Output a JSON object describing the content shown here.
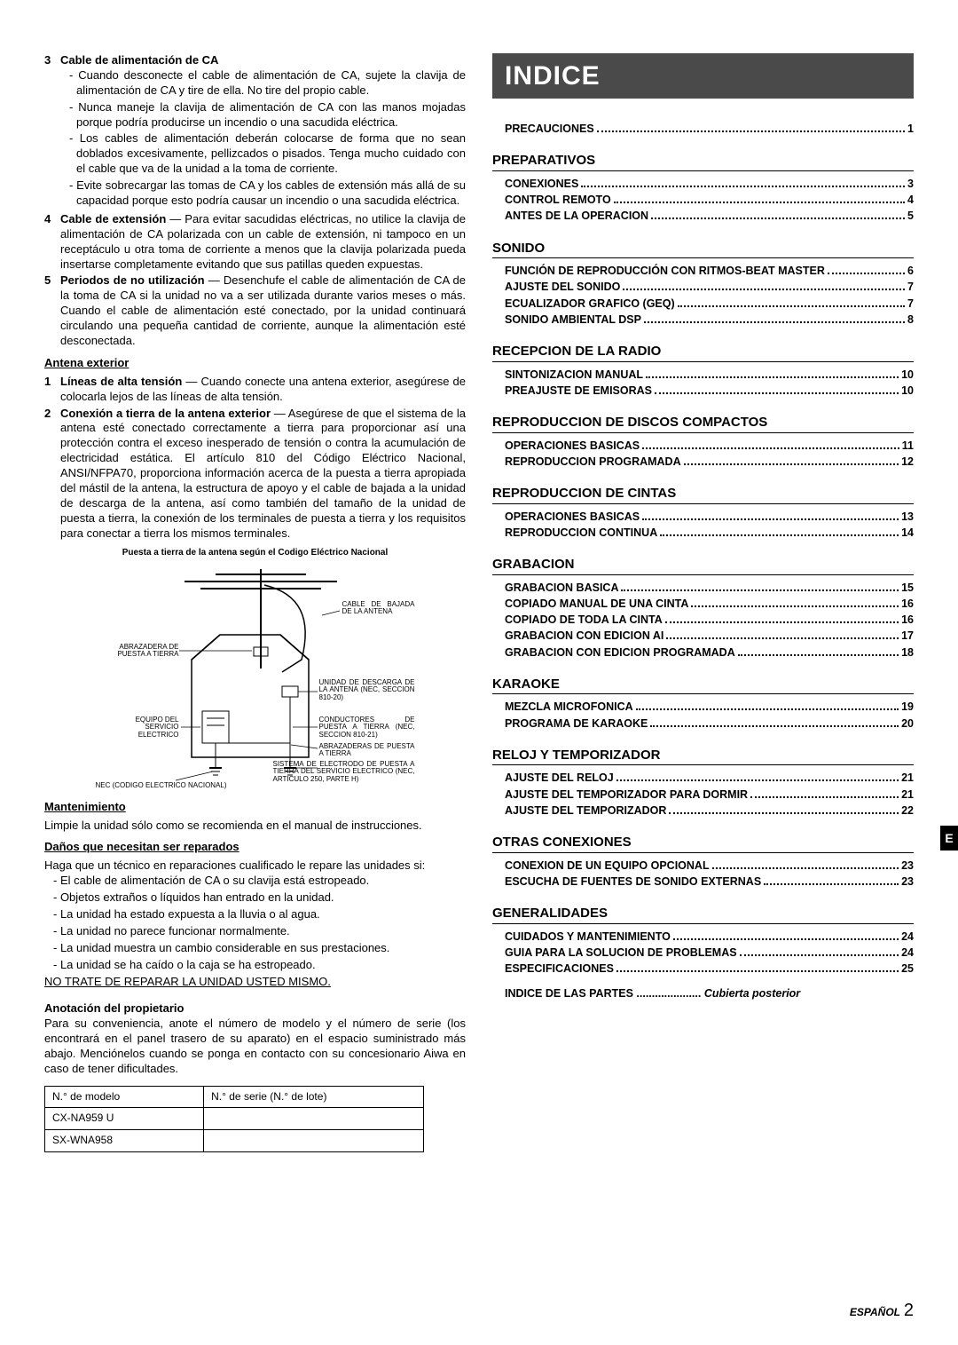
{
  "left": {
    "items_top": [
      {
        "n": "3",
        "title": "Cable de alimentación de CA",
        "dash": [
          "Cuando desconecte el cable de alimentación de CA, sujete la clavija de alimentación de CA y tire de ella. No tire del propio cable.",
          "Nunca maneje la clavija de alimentación de CA con las manos mojadas porque podría producirse un incendio o una sacudida eléctrica.",
          "Los cables de alimentación deberán colocarse de forma que no sean doblados excesivamente, pellizcados o pisados. Tenga mucho cuidado con el cable que va de la unidad a la toma de corriente.",
          "Evite sobrecargar las tomas de CA y los cables de extensión más allá de su capacidad porque esto podría causar un incendio o una sacudida eléctrica."
        ]
      },
      {
        "n": "4",
        "title": "Cable de extensión",
        "inline": " — Para evitar sacudidas eléctricas, no utilice la clavija de alimentación de CA polarizada con un cable de extensión, ni tampoco en un receptáculo u otra toma de corriente a menos que la clavija polarizada pueda insertarse completamente evitando que sus patillas queden expuestas."
      },
      {
        "n": "5",
        "title": "Periodos de no utilización",
        "inline": " — Desenchufe el cable de alimentación de CA de la toma de CA si la unidad no va a ser utilizada durante varios meses o más. Cuando el cable de alimentación esté conectado, por la unidad continuará circulando una pequeña cantidad de corriente, aunque la alimentación esté desconectada."
      }
    ],
    "antena_h": "Antena exterior",
    "antena_items": [
      {
        "n": "1",
        "title": "Líneas de alta tensión",
        "inline": " — Cuando conecte una antena exterior, asegúrese de colocarla lejos de las líneas de alta tensión."
      },
      {
        "n": "2",
        "title": "Conexión a tierra de la antena exterior",
        "inline": " — Asegúrese de que el sistema de la antena esté conectado correctamente a tierra para proporcionar así una protección contra el exceso inesperado de tensión o contra la acumulación de electricidad estática. El artículo 810 del Código Eléctrico Nacional, ANSI/NFPA70, proporciona información acerca de la puesta a tierra apropiada del mástil de la antena, la estructura de apoyo y el cable de bajada a la unidad de descarga de la antena, así como también del tamaño de la unidad de puesta a tierra, la conexión de los terminales de puesta a tierra y los requisitos para conectar a tierra los mismos terminales."
      }
    ],
    "diagram_caption": "Puesta a tierra de la antena según el Codigo Eléctrico Nacional",
    "diagram_labels": {
      "cable_bajada": "CABLE DE BAJADA\nDE LA ANTENA",
      "abrazadera": "ABRAZADERA DE\nPUESTA A TIERRA",
      "unidad_desc": "UNIDAD DE DESCARGA\nDE LA ANTENA\n(NEC, SECCION 810-20)",
      "equipo": "EQUIPO DEL\nSERVICIO\nELECTRICO",
      "conductores": "CONDUCTORES DE\nPUESTA A TIERRA\n(NEC, SECCION 810-21)",
      "abrazaderas2": "ABRAZADERAS DE\nPUESTA A TIERRA",
      "sistema": "SISTEMA DE ELECTRODO DE\nPUESTA A TIERRA DEL SERVICIO\nELECTRICO (NEC, ARTICULO 250, PARTE H)",
      "nec": "NEC (CODIGO ELECTRICO NACIONAL)"
    },
    "mant_h": "Mantenimiento",
    "mant_body": "Limpie la unidad sólo como se recomienda en el manual de instrucciones.",
    "danos_h": "Daños que necesitan ser reparados",
    "danos_intro": "Haga que un técnico en reparaciones cualificado le repare las unidades si:",
    "danos_list": [
      "El cable de alimentación de CA o su clavija está estropeado.",
      "Objetos extraños o líquidos han entrado en la unidad.",
      "La unidad ha estado expuesta a la lluvia o al agua.",
      "La unidad no parece funcionar normalmente.",
      "La unidad muestra un cambio considerable en sus prestaciones.",
      "La unidad se ha caído o la caja se ha estropeado."
    ],
    "no_trate": "NO TRATE DE REPARAR LA UNIDAD USTED MISMO.",
    "anot_h": "Anotación del propietario",
    "anot_body": "Para su conveniencia, anote el número de modelo y el número de serie (los encontrará en el panel trasero de su aparato) en el espacio suministrado más abajo. Menciónelos cuando se ponga en contacto con su concesionario Aiwa en caso de tener dificultades.",
    "table": {
      "h1": "N.° de modelo",
      "h2": "N.° de serie (N.° de lote)",
      "r1": "CX-NA959 U",
      "r2": "SX-WNA958"
    }
  },
  "right": {
    "banner": "INDICE",
    "top_line": {
      "label": "PRECAUCIONES",
      "page": "1"
    },
    "sections": [
      {
        "h": "PREPARATIVOS",
        "rows": [
          {
            "label": "CONEXIONES",
            "page": "3"
          },
          {
            "label": "CONTROL REMOTO",
            "page": "4"
          },
          {
            "label": "ANTES DE LA OPERACION",
            "page": "5"
          }
        ]
      },
      {
        "h": "SONIDO",
        "rows": [
          {
            "label": "FUNCIÓN DE REPRODUCCIÓN CON RITMOS-BEAT MASTER",
            "page": "6"
          },
          {
            "label": "AJUSTE DEL SONIDO",
            "page": "7"
          },
          {
            "label": "ECUALIZADOR GRAFICO (GEQ)",
            "page": "7"
          },
          {
            "label": "SONIDO AMBIENTAL DSP",
            "page": "8"
          }
        ]
      },
      {
        "h": "RECEPCION DE LA RADIO",
        "rows": [
          {
            "label": "SINTONIZACION MANUAL",
            "page": "10"
          },
          {
            "label": "PREAJUSTE DE EMISORAS",
            "page": "10"
          }
        ]
      },
      {
        "h": "REPRODUCCION DE DISCOS COMPACTOS",
        "rows": [
          {
            "label": "OPERACIONES BASICAS",
            "page": "11"
          },
          {
            "label": "REPRODUCCION PROGRAMADA",
            "page": "12"
          }
        ]
      },
      {
        "h": "REPRODUCCION DE CINTAS",
        "rows": [
          {
            "label": "OPERACIONES BASICAS",
            "page": "13"
          },
          {
            "label": "REPRODUCCION CONTINUA",
            "page": "14"
          }
        ]
      },
      {
        "h": "GRABACION",
        "rows": [
          {
            "label": "GRABACION BASICA",
            "page": "15"
          },
          {
            "label": "COPIADO MANUAL DE UNA CINTA",
            "page": "16"
          },
          {
            "label": "COPIADO DE TODA LA CINTA",
            "page": "16"
          },
          {
            "label": "GRABACION CON EDICION AI",
            "page": "17"
          },
          {
            "label": "GRABACION CON EDICION PROGRAMADA",
            "page": "18"
          }
        ]
      },
      {
        "h": "KARAOKE",
        "rows": [
          {
            "label": "MEZCLA MICROFONICA",
            "page": "19"
          },
          {
            "label": "PROGRAMA DE KARAOKE",
            "page": "20"
          }
        ]
      },
      {
        "h": "RELOJ Y TEMPORIZADOR",
        "rows": [
          {
            "label": "AJUSTE DEL RELOJ",
            "page": "21"
          },
          {
            "label": "AJUSTE DEL TEMPORIZADOR PARA DORMIR",
            "page": "21"
          },
          {
            "label": "AJUSTE DEL TEMPORIZADOR",
            "page": "22"
          }
        ]
      },
      {
        "h": "OTRAS CONEXIONES",
        "rows": [
          {
            "label": "CONEXION DE UN EQUIPO OPCIONAL",
            "page": "23"
          },
          {
            "label": "ESCUCHA DE FUENTES DE SONIDO EXTERNAS",
            "page": "23"
          }
        ]
      },
      {
        "h": "GENERALIDADES",
        "rows": [
          {
            "label": "CUIDADOS Y MANTENIMIENTO",
            "page": "24"
          },
          {
            "label": "GUIA PARA LA SOLUCION DE PROBLEMAS",
            "page": "24"
          },
          {
            "label": "ESPECIFICACIONES",
            "page": "25"
          }
        ]
      }
    ],
    "last_line": {
      "label": "INDICE DE LAS PARTES",
      "tail": "Cubierta posterior"
    },
    "etab": "E",
    "footer_lang": "ESPAÑOL",
    "footer_page": "2"
  }
}
